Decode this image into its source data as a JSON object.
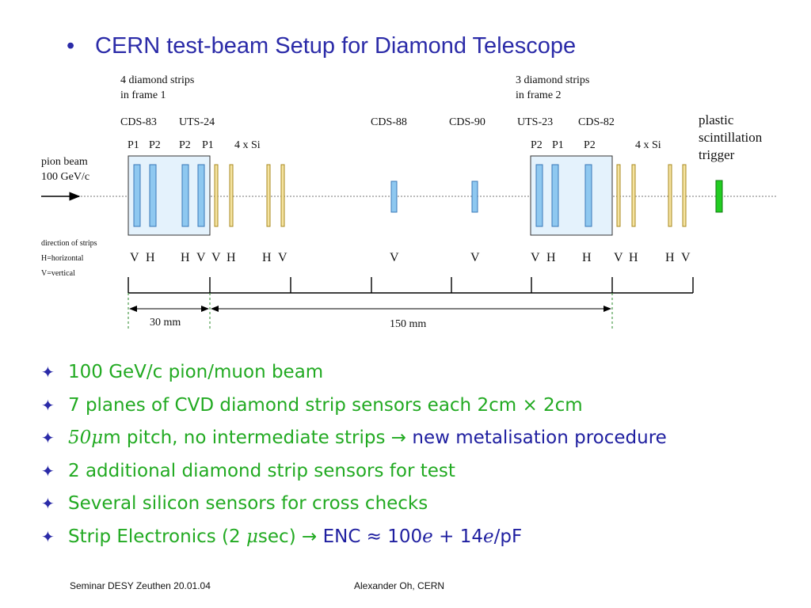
{
  "title": "CERN test-beam Setup for Diamond Telescope",
  "title_bullet": "•",
  "diagram": {
    "frame1_caption": [
      "4 diamond strips",
      "in frame 1"
    ],
    "frame2_caption": [
      "3 diamond strips",
      "in frame 2"
    ],
    "detector_names": [
      "CDS-83",
      "UTS-24",
      "CDS-88",
      "CDS-90",
      "UTS-23",
      "CDS-82"
    ],
    "plane_labels_left": [
      "P1",
      "P2",
      "P2",
      "P1",
      "4 x Si"
    ],
    "plane_labels_right": [
      "P2",
      "P1",
      "P2",
      "4 x Si"
    ],
    "trigger_label": [
      "plastic",
      "scintillation",
      "trigger"
    ],
    "beam_label": [
      "pion beam",
      "100 GeV/c"
    ],
    "strip_legend": [
      "direction of strips",
      "H=horizontal",
      "V=vertical"
    ],
    "orientations": [
      "V",
      "H",
      "H",
      "V",
      "V",
      "H",
      "H",
      "V",
      "V",
      "V",
      "V",
      "H",
      "H",
      "V",
      "H",
      "H",
      "V"
    ],
    "dim_30": "30 mm",
    "dim_150": "150 mm",
    "colors": {
      "diamond": "#8ec8f0",
      "diamond_stroke": "#3a78b8",
      "silicon": "#f5e3a0",
      "silicon_stroke": "#a88a20",
      "trigger": "#22cc22",
      "frame": "#e4f2fc"
    }
  },
  "bullets": [
    {
      "parts": [
        {
          "text": "100 GeV/c pion/muon beam",
          "style": "green"
        }
      ]
    },
    {
      "parts": [
        {
          "text": "7 planes of CVD diamond strip sensors each 2cm × 2cm",
          "style": "green"
        }
      ]
    },
    {
      "parts": [
        {
          "text": "50μ",
          "style": "green-math"
        },
        {
          "text": "m pitch, no intermediate strips → ",
          "style": "green"
        },
        {
          "text": "new metalisation procedure",
          "style": "blue"
        }
      ]
    },
    {
      "parts": [
        {
          "text": "2 additional diamond strip sensors for test",
          "style": "green"
        }
      ]
    },
    {
      "parts": [
        {
          "text": "Several silicon sensors for cross checks",
          "style": "green"
        }
      ]
    },
    {
      "parts": [
        {
          "text": "Strip Electronics (2 ",
          "style": "green"
        },
        {
          "text": "μ",
          "style": "green-math"
        },
        {
          "text": "sec) → ",
          "style": "green"
        },
        {
          "text": "ENC ≈ 100",
          "style": "blue"
        },
        {
          "text": "e",
          "style": "blue-math"
        },
        {
          "text": " + 14",
          "style": "blue"
        },
        {
          "text": "e",
          "style": "blue-math"
        },
        {
          "text": "/pF",
          "style": "blue"
        }
      ]
    }
  ],
  "bullet_marker": "✦",
  "footer": {
    "left": "Seminar DESY Zeuthen 20.01.04",
    "center": "Alexander Oh, CERN"
  }
}
